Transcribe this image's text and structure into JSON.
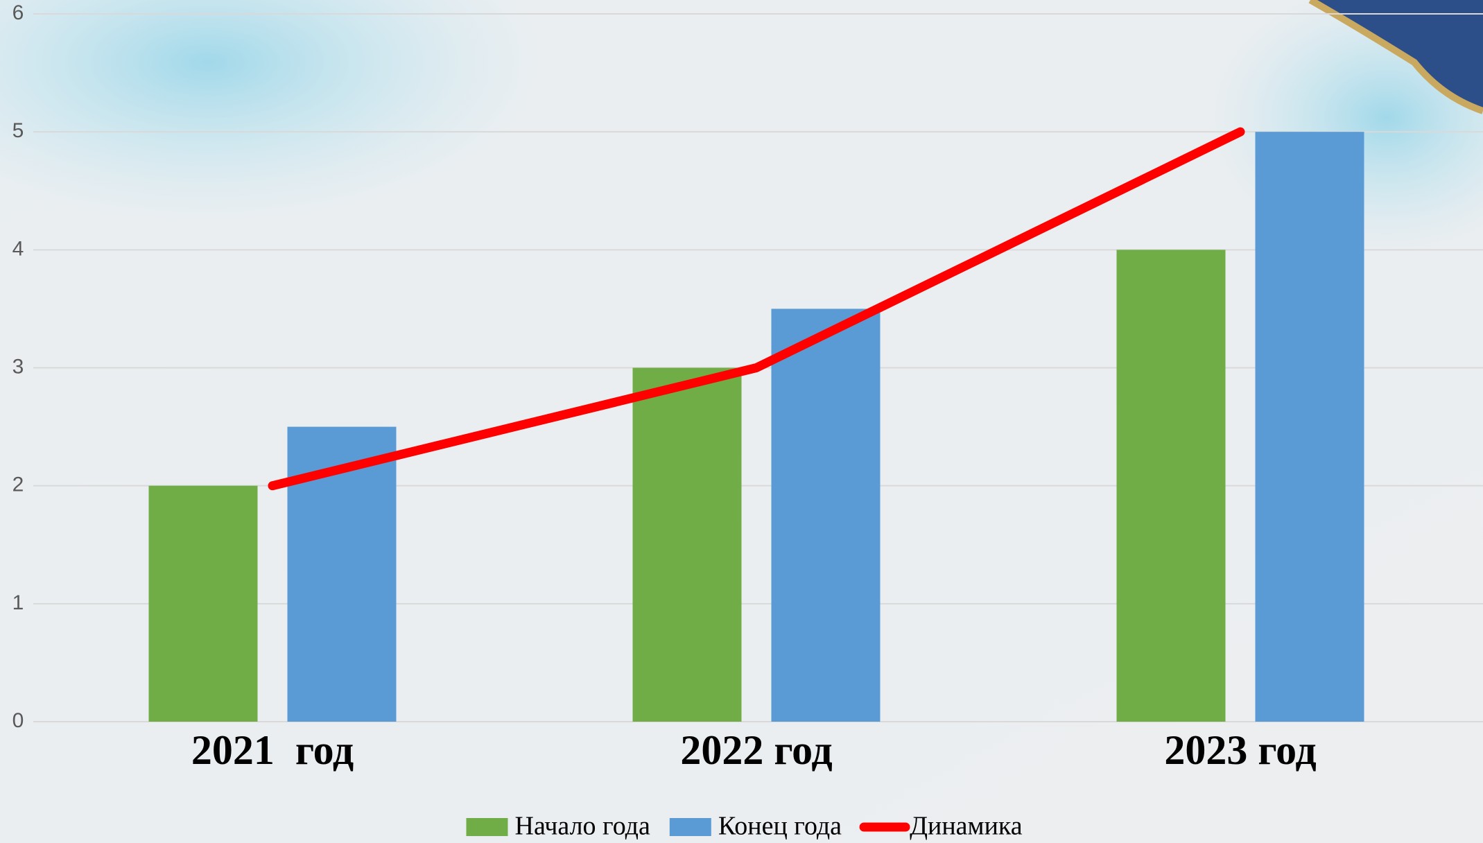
{
  "chart_data": {
    "type": "bar",
    "categories": [
      "2021  год",
      "2022 год",
      "2023 год"
    ],
    "series": [
      {
        "name": "Начало года",
        "color": "#70ad47",
        "type": "bar",
        "values": [
          2,
          3,
          4
        ]
      },
      {
        "name": "Конец года",
        "color": "#5b9bd5",
        "type": "bar",
        "values": [
          2.5,
          3.5,
          5
        ]
      },
      {
        "name": "Динамика",
        "color": "#ff0000",
        "type": "line",
        "values": [
          2,
          3,
          5
        ]
      }
    ],
    "ylim": [
      0,
      6
    ],
    "yticks": [
      0,
      1,
      2,
      3,
      4,
      5,
      6
    ],
    "grid": true,
    "legend": "bottom"
  }
}
